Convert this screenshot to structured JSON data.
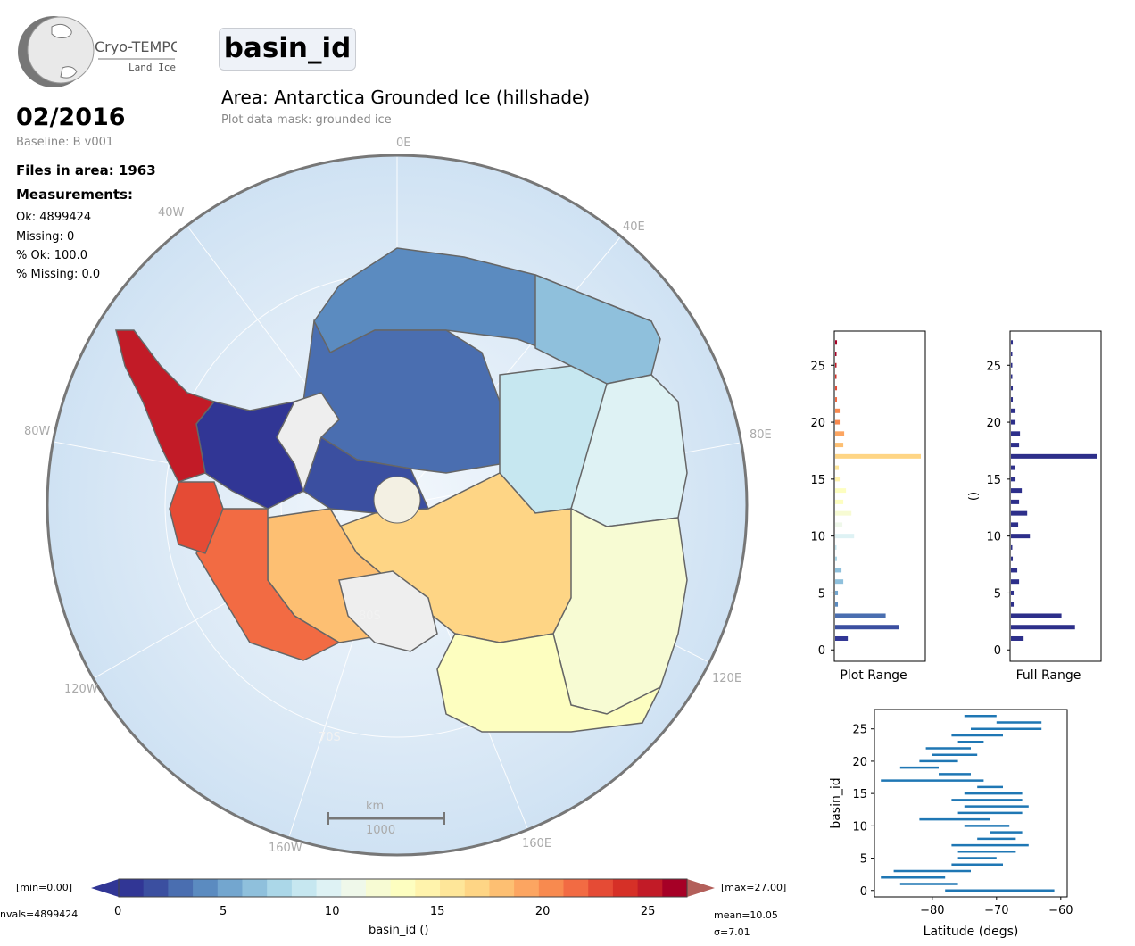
{
  "logo": {
    "name": "Cryo-TEMPO",
    "sub": "Land Ice"
  },
  "title": "basin_id",
  "area": "Area: Antarctica Grounded Ice (hillshade)",
  "mask": "Plot data mask: grounded ice",
  "date": "02/2016",
  "baseline": "Baseline: B v001",
  "files": "Files in area: 1963",
  "measurements_heading": "Measurements:",
  "stats": [
    "Ok: 4899424",
    "Missing: 0",
    "% Ok: 100.0",
    "% Missing: 0.0"
  ],
  "map": {
    "meridians": {
      "m0": "0E",
      "m40e": "40E",
      "m80e": "80E",
      "m120e": "120E",
      "m160e": "160E",
      "m160w": "160W",
      "m120w": "120W",
      "m80w": "80W",
      "m40w": "40W"
    },
    "parallels": {
      "p80": "80S",
      "p70": "70S"
    },
    "scalebar_unit": "km",
    "scalebar_value": "1000"
  },
  "colorbar": {
    "min_label": "[min=0.00]",
    "max_label": "[max=27.00]",
    "nvals": "nvals=4899424",
    "mean": "mean=10.05",
    "sigma": "σ=7.01",
    "label": "basin_id ()",
    "ticks": [
      "0",
      "5",
      "10",
      "15",
      "20",
      "25"
    ],
    "colors": [
      "#313695",
      "#3b4fa0",
      "#4a6eb0",
      "#5b8bc0",
      "#73a6cf",
      "#8fc0dc",
      "#abd7e8",
      "#c6e7f0",
      "#def2f4",
      "#eff8ea",
      "#f7fbd3",
      "#fdfec0",
      "#fff3ac",
      "#fee699",
      "#fed585",
      "#fdbf72",
      "#fca561",
      "#f88a4f",
      "#f26b43",
      "#e54b35",
      "#d63027",
      "#c21b27",
      "#a60026"
    ]
  },
  "chart_data": [
    {
      "type": "bar",
      "orientation": "horizontal",
      "xlabel": "Plot Range",
      "ylabel": "",
      "ylim": [
        -1,
        28
      ],
      "yticks": [
        "0",
        "5",
        "10",
        "15",
        "20",
        "25"
      ],
      "categories": [
        1,
        2,
        3,
        4,
        5,
        6,
        7,
        8,
        9,
        10,
        11,
        12,
        13,
        14,
        15,
        16,
        17,
        18,
        19,
        20,
        21,
        22,
        23,
        24,
        25,
        26,
        27
      ],
      "values": [
        0.14,
        0.71,
        0.56,
        0.03,
        0.03,
        0.09,
        0.07,
        0.02,
        0.01,
        0.21,
        0.08,
        0.18,
        0.09,
        0.12,
        0.05,
        0.04,
        0.95,
        0.09,
        0.1,
        0.05,
        0.05,
        0.02,
        0.02,
        0.01,
        0.01,
        0.01,
        0.02
      ]
    },
    {
      "type": "bar",
      "orientation": "horizontal",
      "xlabel": "Full Range",
      "ylabel": "()",
      "ylim": [
        -1,
        28
      ],
      "yticks": [
        "0",
        "5",
        "10",
        "15",
        "20",
        "25"
      ],
      "categories": [
        1,
        2,
        3,
        4,
        5,
        6,
        7,
        8,
        9,
        10,
        11,
        12,
        13,
        14,
        15,
        16,
        17,
        18,
        19,
        20,
        21,
        22,
        23,
        24,
        25,
        26,
        27
      ],
      "values": [
        0.14,
        0.71,
        0.56,
        0.03,
        0.03,
        0.09,
        0.07,
        0.02,
        0.01,
        0.21,
        0.08,
        0.18,
        0.09,
        0.12,
        0.05,
        0.04,
        0.95,
        0.09,
        0.1,
        0.05,
        0.05,
        0.02,
        0.02,
        0.01,
        0.01,
        0.01,
        0.02
      ]
    },
    {
      "type": "range",
      "xlabel": "Latitude (degs)",
      "ylabel": "basin_id",
      "xlim": [
        -89,
        -59
      ],
      "ylim": [
        -1,
        28
      ],
      "xticks": [
        "-80",
        "-70",
        "-60"
      ],
      "yticks": [
        "0",
        "5",
        "10",
        "15",
        "20",
        "25"
      ],
      "ranges": [
        [
          0,
          -78,
          -61
        ],
        [
          1,
          -85,
          -76
        ],
        [
          2,
          -88,
          -78
        ],
        [
          3,
          -86,
          -74
        ],
        [
          4,
          -77,
          -69
        ],
        [
          5,
          -76,
          -70
        ],
        [
          6,
          -76,
          -67
        ],
        [
          7,
          -77,
          -65
        ],
        [
          8,
          -73,
          -67
        ],
        [
          9,
          -71,
          -66
        ],
        [
          10,
          -75,
          -68
        ],
        [
          11,
          -82,
          -71
        ],
        [
          12,
          -76,
          -66
        ],
        [
          13,
          -75,
          -65
        ],
        [
          14,
          -77,
          -66
        ],
        [
          15,
          -75,
          -66
        ],
        [
          16,
          -73,
          -69
        ],
        [
          17,
          -88,
          -72
        ],
        [
          18,
          -79,
          -74
        ],
        [
          19,
          -85,
          -79
        ],
        [
          20,
          -82,
          -76
        ],
        [
          21,
          -80,
          -73
        ],
        [
          22,
          -81,
          -74
        ],
        [
          23,
          -76,
          -72
        ],
        [
          24,
          -77,
          -69
        ],
        [
          25,
          -74,
          -63
        ],
        [
          26,
          -70,
          -63
        ],
        [
          27,
          -75,
          -70
        ]
      ]
    }
  ]
}
